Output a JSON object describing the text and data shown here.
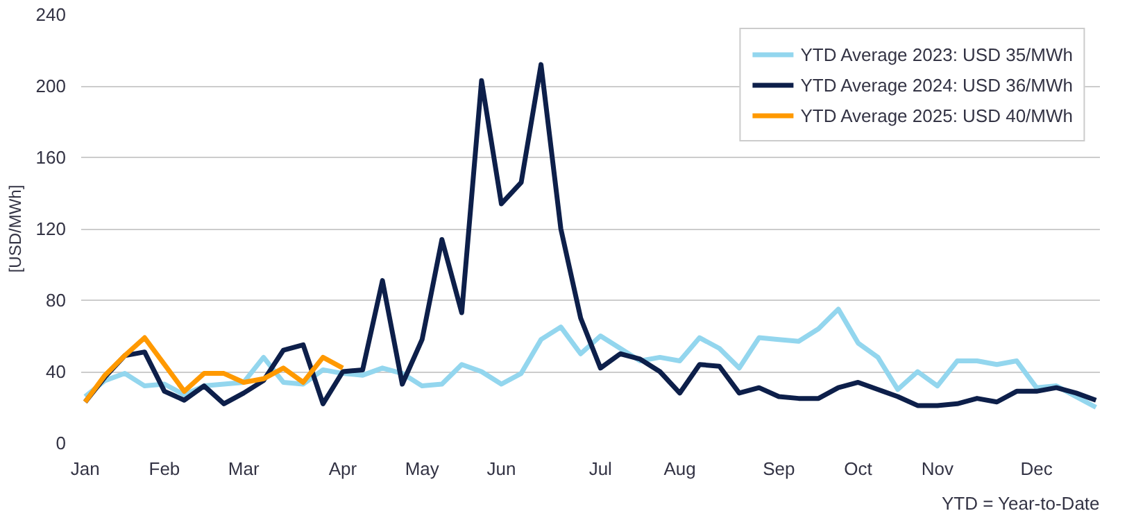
{
  "chart_data": {
    "type": "line",
    "ylabel": "[USD/MWh]",
    "annotations": [
      "YTD = Year-to-Date"
    ],
    "categories": [
      "Jan",
      null,
      null,
      null,
      "Feb",
      null,
      null,
      null,
      "Mar",
      null,
      null,
      null,
      null,
      "Apr",
      null,
      null,
      null,
      "May",
      null,
      null,
      null,
      "Jun",
      null,
      null,
      null,
      null,
      "Jul",
      null,
      null,
      null,
      "Aug",
      null,
      null,
      null,
      null,
      "Sep",
      null,
      null,
      null,
      "Oct",
      null,
      null,
      null,
      "Nov",
      null,
      null,
      null,
      null,
      "Dec",
      null,
      null,
      null
    ],
    "ylim": [
      0,
      240
    ],
    "yticks": [
      0,
      40,
      80,
      120,
      160,
      200,
      240
    ],
    "grid": "y",
    "legend": "top right",
    "line_style": "solid",
    "series": [
      {
        "name": "YTD Average 2023: USD 35/MWh",
        "color": "#93d6ee",
        "values": [
          26,
          35,
          39,
          32,
          33,
          27,
          32,
          33,
          34,
          48,
          34,
          33,
          41,
          39,
          38,
          42,
          39,
          32,
          33,
          44,
          40,
          33,
          39,
          58,
          65,
          50,
          60,
          53,
          46,
          48,
          46,
          59,
          53,
          42,
          59,
          58,
          57,
          64,
          75,
          56,
          48,
          30,
          40,
          32,
          46,
          46,
          44,
          46,
          31,
          32,
          26,
          20
        ]
      },
      {
        "name": "YTD Average 2024: USD 36/MWh",
        "color": "#0d1f4a",
        "values": [
          23,
          37,
          49,
          51,
          29,
          24,
          32,
          22,
          28,
          35,
          52,
          55,
          22,
          40,
          41,
          91,
          33,
          58,
          114,
          73,
          203,
          134,
          146,
          212,
          120,
          70,
          42,
          50,
          47,
          40,
          28,
          44,
          43,
          28,
          31,
          26,
          25,
          25,
          31,
          34,
          30,
          26,
          21,
          21,
          22,
          25,
          23,
          29,
          29,
          31,
          28,
          24
        ]
      },
      {
        "name": "YTD Average 2025: USD 40/MWh",
        "color": "#ff9900",
        "values": [
          23,
          38,
          49,
          59,
          44,
          29,
          39,
          39,
          34,
          36,
          42,
          34,
          48,
          42,
          null,
          null,
          null,
          null,
          null,
          null,
          null,
          null,
          null,
          null,
          null,
          null,
          null,
          null,
          null,
          null,
          null,
          null,
          null,
          null,
          null,
          null,
          null,
          null,
          null,
          null,
          null,
          null,
          null,
          null,
          null,
          null,
          null,
          null,
          null,
          null,
          null,
          null
        ]
      }
    ]
  }
}
